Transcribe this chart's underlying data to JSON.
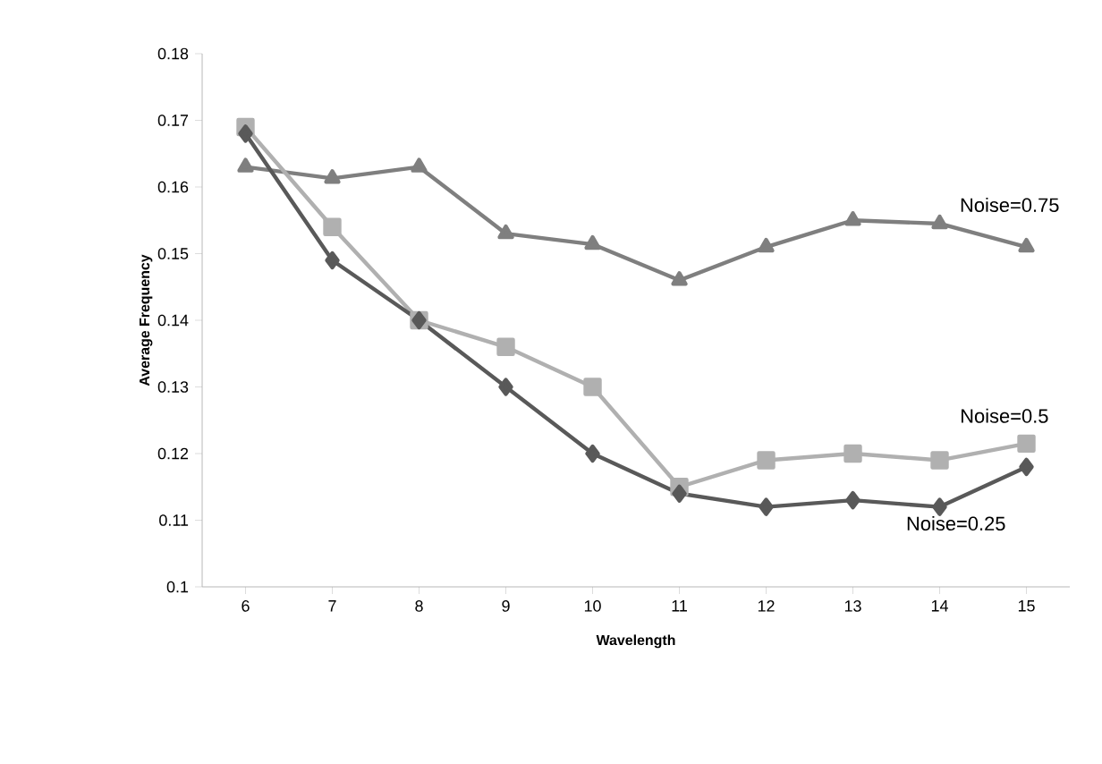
{
  "chart_data": {
    "type": "line",
    "xlabel": "Wavelength",
    "ylabel": "Average Frequency",
    "categories": [
      "6",
      "7",
      "8",
      "9",
      "10",
      "11",
      "12",
      "13",
      "14",
      "15"
    ],
    "ylim": [
      0.1,
      0.18
    ],
    "yticks": [
      0.1,
      0.11,
      0.12,
      0.13,
      0.14,
      0.15,
      0.16,
      0.17,
      0.18
    ],
    "grid": false,
    "legend": false,
    "line_style": "solid",
    "series": [
      {
        "name": "Noise=0.25",
        "color": "#595959",
        "marker": "diamond",
        "values": [
          0.168,
          0.149,
          0.14,
          0.13,
          0.12,
          0.114,
          0.112,
          0.113,
          0.112,
          0.118
        ]
      },
      {
        "name": "Noise=0.5",
        "color": "#b0b0b0",
        "marker": "square",
        "values": [
          0.169,
          0.154,
          0.14,
          0.136,
          0.13,
          0.115,
          0.119,
          0.12,
          0.119,
          0.1215
        ]
      },
      {
        "name": "Noise=0.75",
        "color": "#7f7f7f",
        "marker": "triangle",
        "values": [
          0.163,
          0.1613,
          0.163,
          0.153,
          0.1514,
          0.146,
          0.151,
          0.155,
          0.1545,
          0.151
        ]
      }
    ]
  }
}
